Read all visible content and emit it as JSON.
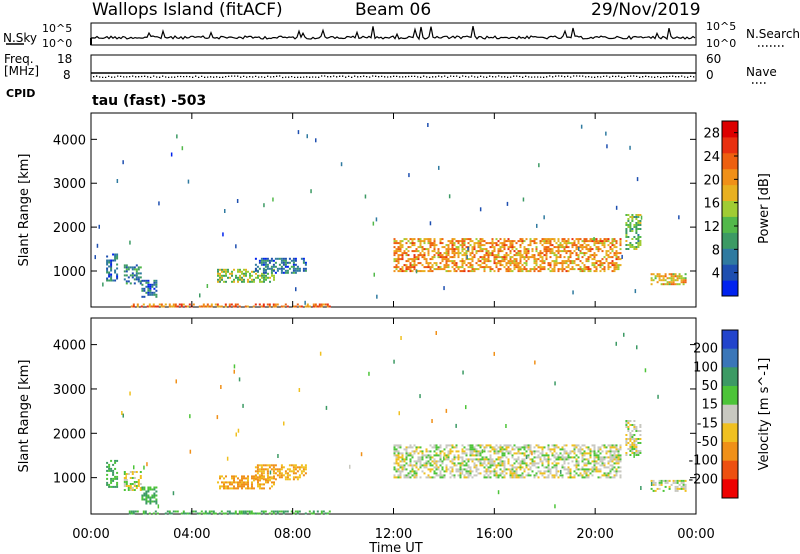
{
  "header": {
    "station": "Wallops Island (fitACF)",
    "beam": "Beam 06",
    "date": "29/Nov/2019"
  },
  "panels": {
    "nsky_label": "N.Sky",
    "nsky_ticks": [
      "10^5",
      "10^0"
    ],
    "nsearch_label": "N.Search",
    "nsearch_ticks": [
      "10^5",
      "10^0"
    ],
    "freq_label_1": "Freq.",
    "freq_label_2": "[MHz]",
    "freq_ticks": [
      "18",
      "8"
    ],
    "nave_label": "Nave",
    "nave_ticks": [
      "60",
      "0"
    ],
    "cpid_label": "CPID",
    "cpid_text": "tau (fast) -503"
  },
  "chart_data": [
    {
      "type": "heatmap",
      "name": "Power",
      "xlabel": "Time UT",
      "ylabel": "Slant Range [km]",
      "x_ticks": [
        "00:00",
        "04:00",
        "08:00",
        "12:00",
        "16:00",
        "20:00",
        "00:00"
      ],
      "y_ticks": [
        "1000",
        "2000",
        "3000",
        "4000"
      ],
      "xlim": [
        0,
        24
      ],
      "ylim": [
        180,
        4600
      ],
      "colorbar": {
        "label": "Power [dB]",
        "ticks": [
          "4",
          "8",
          "12",
          "16",
          "20",
          "24",
          "28"
        ],
        "range": [
          0,
          30
        ],
        "colors": [
          "#0022ee",
          "#1e4fb0",
          "#2f7aa0",
          "#3c9a64",
          "#52b84a",
          "#a0cc33",
          "#e8b020",
          "#f09018",
          "#ee6010",
          "#e83010",
          "#dd0000"
        ]
      },
      "regions": [
        {
          "t": [
            0.6,
            1.0
          ],
          "r": [
            800,
            1400
          ],
          "v": 6
        },
        {
          "t": [
            1.3,
            2.0
          ],
          "r": [
            700,
            1150
          ],
          "v": 8
        },
        {
          "t": [
            2.0,
            2.6
          ],
          "r": [
            400,
            800
          ],
          "v": 6
        },
        {
          "t": [
            1.5,
            9.5
          ],
          "r": [
            180,
            260
          ],
          "v": 22
        },
        {
          "t": [
            5.0,
            7.3
          ],
          "r": [
            750,
            1050
          ],
          "v": 14
        },
        {
          "t": [
            6.5,
            8.5
          ],
          "r": [
            950,
            1300
          ],
          "v": 6
        },
        {
          "t": [
            12.0,
            21.0
          ],
          "r": [
            1000,
            1750
          ],
          "v": 20
        },
        {
          "t": [
            21.2,
            21.8
          ],
          "r": [
            1500,
            2300
          ],
          "v": 12
        },
        {
          "t": [
            22.2,
            23.6
          ],
          "r": [
            700,
            950
          ],
          "v": 18
        }
      ]
    },
    {
      "type": "heatmap",
      "name": "Velocity",
      "xlabel": "Time UT",
      "ylabel": "Slant Range [km]",
      "x_ticks": [
        "00:00",
        "04:00",
        "08:00",
        "12:00",
        "16:00",
        "20:00",
        "00:00"
      ],
      "y_ticks": [
        "1000",
        "2000",
        "3000",
        "4000"
      ],
      "xlim": [
        0,
        24
      ],
      "ylim": [
        180,
        4600
      ],
      "colorbar": {
        "label": "Velocity [m s^-1]",
        "ticks": [
          "200",
          "100",
          "50",
          "15",
          "-15",
          "-50",
          "-100",
          "-200"
        ],
        "colors": [
          "#2244cc",
          "#3a76b8",
          "#3c9a64",
          "#4cc438",
          "#c8c8c0",
          "#f0c020",
          "#f09018",
          "#ee5010",
          "#ee0000"
        ]
      },
      "regions": [
        {
          "t": [
            0.6,
            1.0
          ],
          "r": [
            800,
            1400
          ],
          "v": 30
        },
        {
          "t": [
            1.3,
            2.0
          ],
          "r": [
            700,
            1150
          ],
          "v": 0
        },
        {
          "t": [
            2.0,
            2.6
          ],
          "r": [
            400,
            800
          ],
          "v": 30
        },
        {
          "t": [
            1.5,
            9.5
          ],
          "r": [
            180,
            260
          ],
          "v": 30
        },
        {
          "t": [
            5.0,
            7.3
          ],
          "r": [
            750,
            1050
          ],
          "v": -35
        },
        {
          "t": [
            6.5,
            8.5
          ],
          "r": [
            950,
            1300
          ],
          "v": -25
        },
        {
          "t": [
            12.0,
            21.0
          ],
          "r": [
            1000,
            1750
          ],
          "v": 0
        },
        {
          "t": [
            21.2,
            21.8
          ],
          "r": [
            1500,
            2300
          ],
          "v": 0
        },
        {
          "t": [
            22.2,
            23.6
          ],
          "r": [
            700,
            950
          ],
          "v": 0
        }
      ]
    }
  ]
}
